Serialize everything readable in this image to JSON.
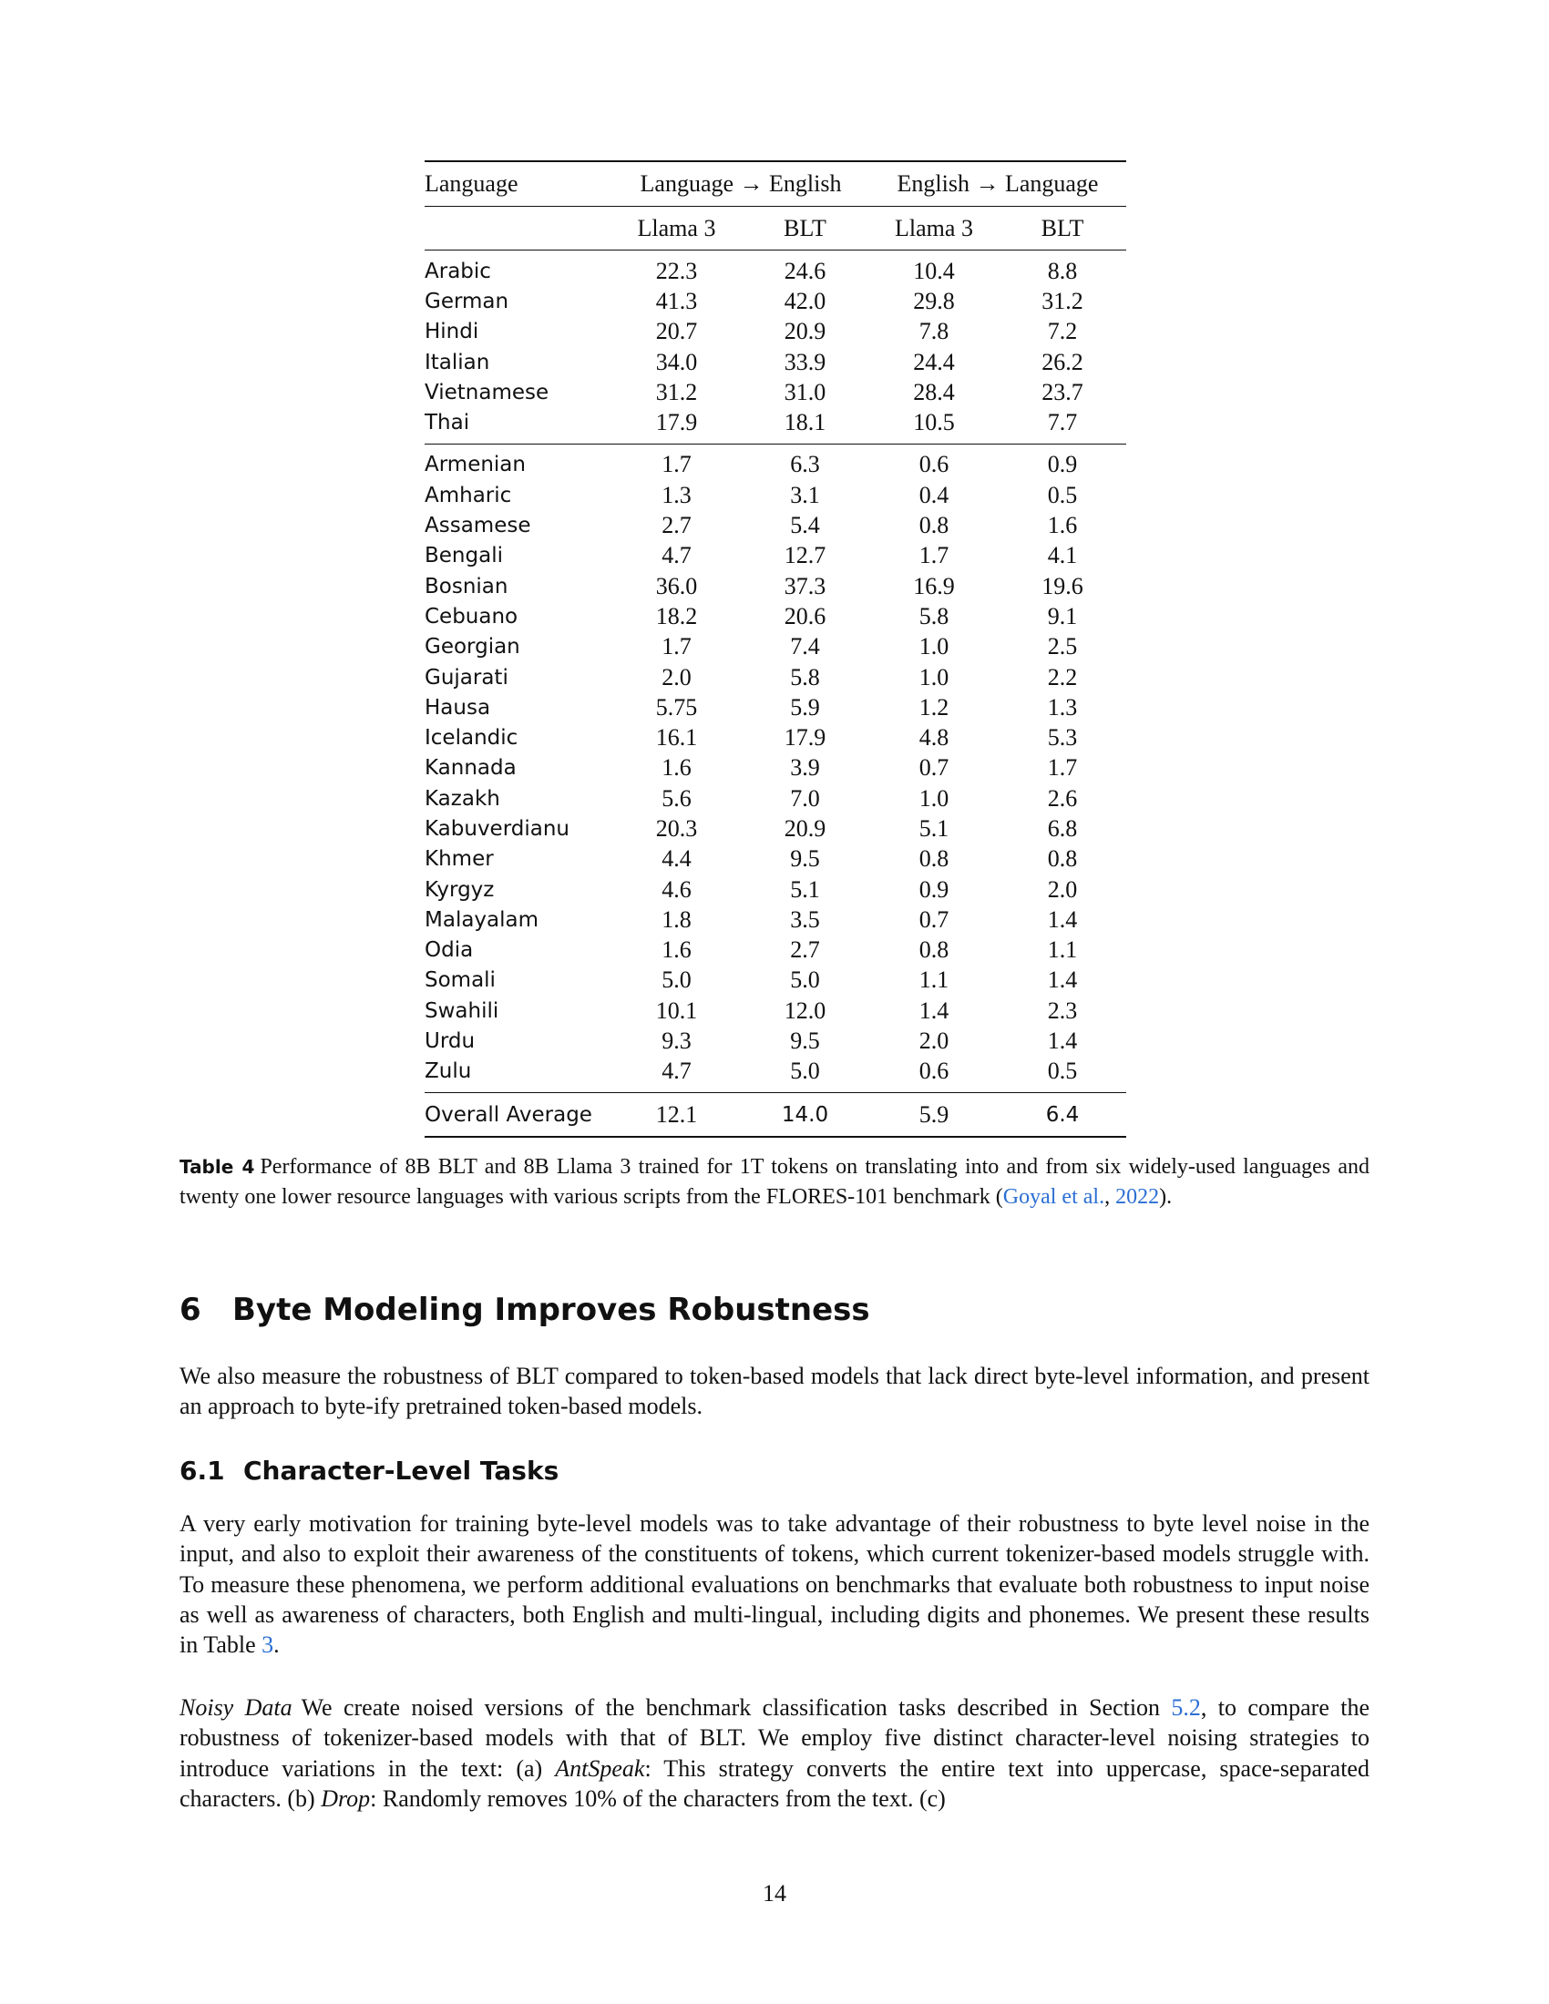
{
  "table": {
    "header": {
      "language": "Language",
      "group1": "Language → English",
      "group2": "English → Language",
      "model_a": "Llama 3",
      "model_b": "BLT"
    },
    "group1_rows": [
      {
        "lang": "Arabic",
        "v": [
          "22.3",
          "24.6",
          "10.4",
          "8.8"
        ]
      },
      {
        "lang": "German",
        "v": [
          "41.3",
          "42.0",
          "29.8",
          "31.2"
        ]
      },
      {
        "lang": "Hindi",
        "v": [
          "20.7",
          "20.9",
          "7.8",
          "7.2"
        ]
      },
      {
        "lang": "Italian",
        "v": [
          "34.0",
          "33.9",
          "24.4",
          "26.2"
        ]
      },
      {
        "lang": "Vietnamese",
        "v": [
          "31.2",
          "31.0",
          "28.4",
          "23.7"
        ]
      },
      {
        "lang": "Thai",
        "v": [
          "17.9",
          "18.1",
          "10.5",
          "7.7"
        ]
      }
    ],
    "group2_rows": [
      {
        "lang": "Armenian",
        "v": [
          "1.7",
          "6.3",
          "0.6",
          "0.9"
        ]
      },
      {
        "lang": "Amharic",
        "v": [
          "1.3",
          "3.1",
          "0.4",
          "0.5"
        ]
      },
      {
        "lang": "Assamese",
        "v": [
          "2.7",
          "5.4",
          "0.8",
          "1.6"
        ]
      },
      {
        "lang": "Bengali",
        "v": [
          "4.7",
          "12.7",
          "1.7",
          "4.1"
        ]
      },
      {
        "lang": "Bosnian",
        "v": [
          "36.0",
          "37.3",
          "16.9",
          "19.6"
        ]
      },
      {
        "lang": "Cebuano",
        "v": [
          "18.2",
          "20.6",
          "5.8",
          "9.1"
        ]
      },
      {
        "lang": "Georgian",
        "v": [
          "1.7",
          "7.4",
          "1.0",
          "2.5"
        ]
      },
      {
        "lang": "Gujarati",
        "v": [
          "2.0",
          "5.8",
          "1.0",
          "2.2"
        ]
      },
      {
        "lang": "Hausa",
        "v": [
          "5.75",
          "5.9",
          "1.2",
          "1.3"
        ]
      },
      {
        "lang": "Icelandic",
        "v": [
          "16.1",
          "17.9",
          "4.8",
          "5.3"
        ]
      },
      {
        "lang": "Kannada",
        "v": [
          "1.6",
          "3.9",
          "0.7",
          "1.7"
        ]
      },
      {
        "lang": "Kazakh",
        "v": [
          "5.6",
          "7.0",
          "1.0",
          "2.6"
        ]
      },
      {
        "lang": "Kabuverdianu",
        "v": [
          "20.3",
          "20.9",
          "5.1",
          "6.8"
        ]
      },
      {
        "lang": "Khmer",
        "v": [
          "4.4",
          "9.5",
          "0.8",
          "0.8"
        ]
      },
      {
        "lang": "Kyrgyz",
        "v": [
          "4.6",
          "5.1",
          "0.9",
          "2.0"
        ]
      },
      {
        "lang": "Malayalam",
        "v": [
          "1.8",
          "3.5",
          "0.7",
          "1.4"
        ]
      },
      {
        "lang": "Odia",
        "v": [
          "1.6",
          "2.7",
          "0.8",
          "1.1"
        ]
      },
      {
        "lang": "Somali",
        "v": [
          "5.0",
          "5.0",
          "1.1",
          "1.4"
        ]
      },
      {
        "lang": "Swahili",
        "v": [
          "10.1",
          "12.0",
          "1.4",
          "2.3"
        ]
      },
      {
        "lang": "Urdu",
        "v": [
          "9.3",
          "9.5",
          "2.0",
          "1.4"
        ]
      },
      {
        "lang": "Zulu",
        "v": [
          "4.7",
          "5.0",
          "0.6",
          "0.5"
        ]
      }
    ],
    "average": {
      "lang": "Overall Average",
      "v": [
        "12.1",
        "14.0",
        "5.9",
        "6.4"
      ]
    }
  },
  "caption": {
    "label": "Table 4",
    "text": "Performance of 8B BLT and 8B Llama 3 trained for 1T tokens on translating into and from six widely-used languages and twenty one lower resource languages with various scripts from the FLORES-101 benchmark (",
    "cite_author": "Goyal et al.",
    "sep": ", ",
    "cite_year": "2022",
    "end": ")."
  },
  "section": {
    "number": "6",
    "title": "Byte Modeling Improves Robustness"
  },
  "intro": "We also measure the robustness of BLT compared to token-based models that lack direct byte-level information, and present an approach to byte-ify pretrained token-based models.",
  "subsection": {
    "number": "6.1",
    "title": "Character-Level Tasks"
  },
  "char_para": {
    "text": "A very early motivation for training byte-level models was to take advantage of their robustness to byte level noise in the input, and also to exploit their awareness of the constituents of tokens, which current tokenizer-based models struggle with. To measure these phenomena, we perform additional evaluations on benchmarks that evaluate both robustness to input noise as well as awareness of characters, both English and multi-lingual, including digits and phonemes. We present these results in Table ",
    "ref": "3",
    "end": "."
  },
  "noisy_para": {
    "runin": "Noisy Data",
    "t1": "We create noised versions of the benchmark classification tasks described in Section ",
    "ref": "5.2",
    "t2": ", to compare the robustness of tokenizer-based models with that of BLT. We employ five distinct character-level noising strategies to introduce variations in the text: (a) ",
    "em1": "AntSpeak",
    "t3": ": This strategy converts the entire text into uppercase, space-separated characters. (b) ",
    "em2": "Drop",
    "t4": ": Randomly removes 10% of the characters from the text. (c)"
  },
  "page_number": "14"
}
